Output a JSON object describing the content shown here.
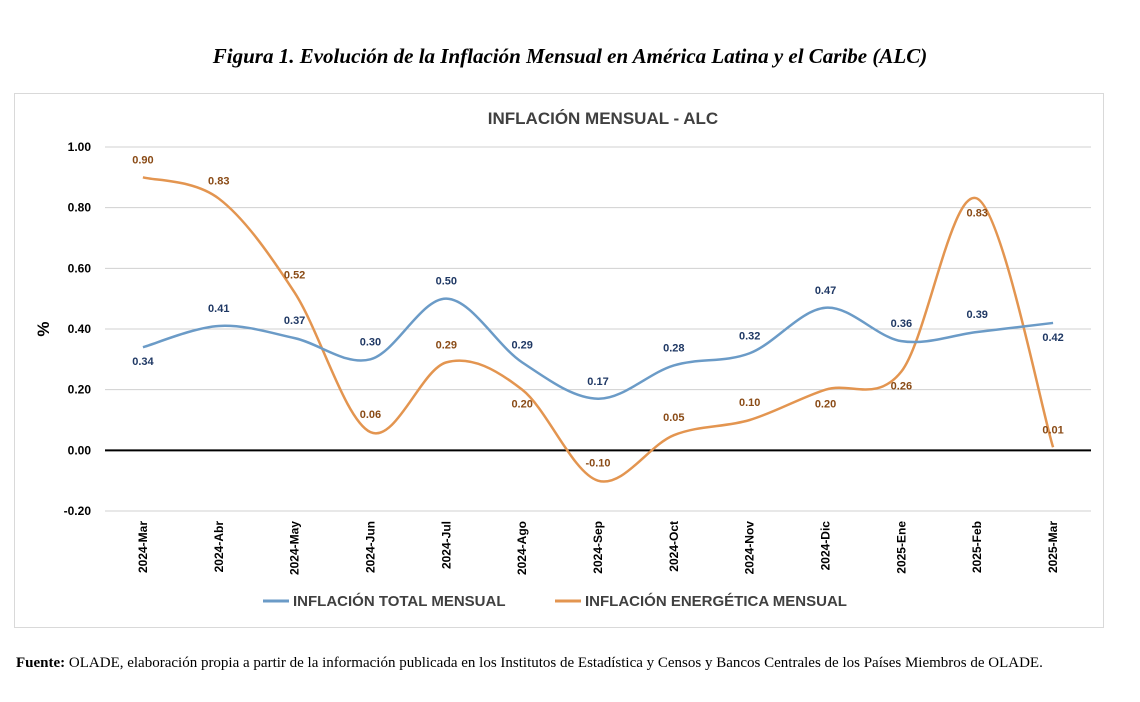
{
  "figure_caption": "Figura 1. Evolución de la Inflación Mensual en América Latina y el Caribe (ALC)",
  "footer": {
    "label": "Fuente:",
    "text": " OLADE, elaboración propia a partir de la información publicada en los Institutos de Estadística y Censos y Bancos Centrales de los Países Miembros de OLADE."
  },
  "chart_data": {
    "type": "line",
    "title": "INFLACIÓN MENSUAL - ALC",
    "ylabel": "%",
    "xlabel": "",
    "ylim": [
      -0.2,
      1.0
    ],
    "yticks": [
      "1.00",
      "0.80",
      "0.60",
      "0.40",
      "0.20",
      "0.00",
      "-0.20"
    ],
    "ytick_values": [
      1.0,
      0.8,
      0.6,
      0.4,
      0.2,
      0.0,
      -0.2
    ],
    "grid": true,
    "legend_position": "bottom",
    "categories": [
      "2024-Mar",
      "2024-Abr",
      "2024-May",
      "2024-Jun",
      "2024-Jul",
      "2024-Ago",
      "2024-Sep",
      "2024-Oct",
      "2024-Nov",
      "2024-Dic",
      "2025-Ene",
      "2025-Feb",
      "2025-Mar"
    ],
    "series": [
      {
        "name": "INFLACIÓN TOTAL MENSUAL",
        "color": "#6b9bc7",
        "label_color": "#1f3864",
        "values": [
          0.34,
          0.41,
          0.37,
          0.3,
          0.5,
          0.29,
          0.17,
          0.28,
          0.32,
          0.47,
          0.36,
          0.39,
          0.42
        ],
        "labels": [
          "0.34",
          "0.41",
          "0.37",
          "0.30",
          "0.50",
          "0.29",
          "0.17",
          "0.28",
          "0.32",
          "0.47",
          "0.36",
          "0.39",
          "0.42"
        ]
      },
      {
        "name": "INFLACIÓN ENERGÉTICA MENSUAL",
        "color": "#e39550",
        "label_color": "#8a4b16",
        "values": [
          0.9,
          0.83,
          0.52,
          0.06,
          0.29,
          0.2,
          -0.1,
          0.05,
          0.1,
          0.2,
          0.26,
          0.83,
          0.01
        ],
        "labels": [
          "0.90",
          "0.83",
          "0.52",
          "0.06",
          "0.29",
          "0.20",
          "-0.10",
          "0.05",
          "0.10",
          "0.20",
          "0.26",
          "0.83",
          "0.01"
        ]
      }
    ]
  }
}
